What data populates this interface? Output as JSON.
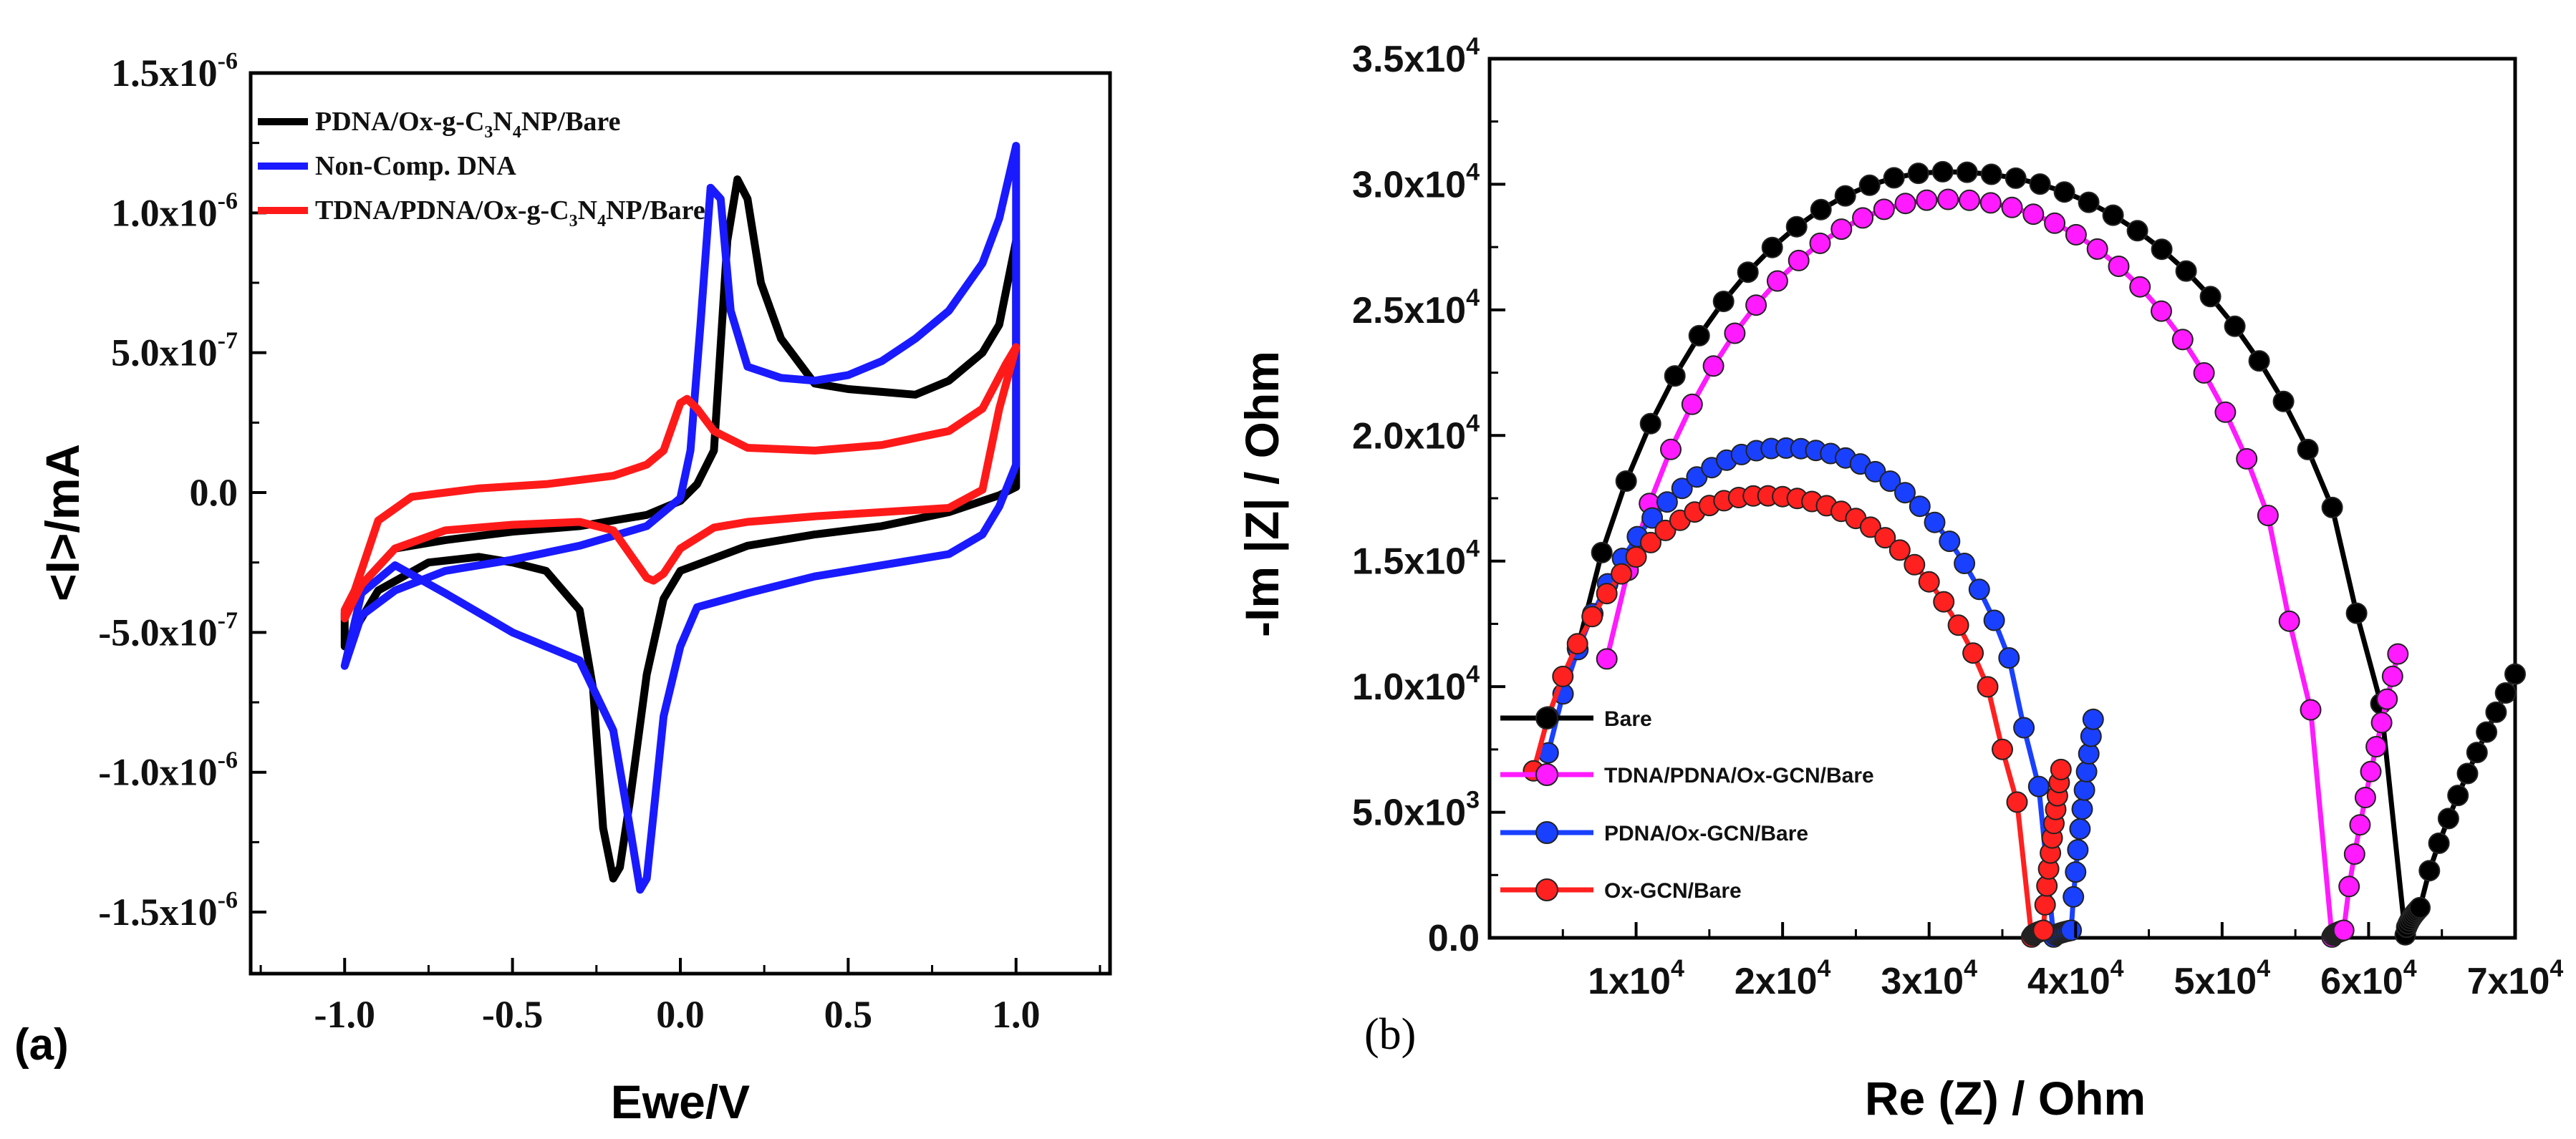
{
  "chart_data": [
    {
      "panel_label": "(a)",
      "type": "line",
      "xlabel": "Ewe/V",
      "ylabel": "<I>/mA",
      "xlim": [
        -1.28,
        1.28
      ],
      "ylim": [
        -1.72e-06,
        1.5e-06
      ],
      "x_ticks": [
        {
          "v": -1.0,
          "t": "-1.0"
        },
        {
          "v": -0.5,
          "t": "-0.5"
        },
        {
          "v": 0.0,
          "t": "0.0"
        },
        {
          "v": 0.5,
          "t": "0.5"
        },
        {
          "v": 1.0,
          "t": "1.0"
        }
      ],
      "y_ticks": [
        {
          "v": 1.5e-06,
          "m": "1.5x10",
          "e": "-6"
        },
        {
          "v": 1e-06,
          "m": "1.0x10",
          "e": "-6"
        },
        {
          "v": 5e-07,
          "m": "5.0x10",
          "e": "-7"
        },
        {
          "v": 0,
          "m": "0.0",
          "e": ""
        },
        {
          "v": -5e-07,
          "m": "-5.0x10",
          "e": "-7"
        },
        {
          "v": -1e-06,
          "m": "-1.0x10",
          "e": "-6"
        },
        {
          "v": -1.5e-06,
          "m": "-1.5x10",
          "e": "-6"
        }
      ],
      "legend_position": "top-left",
      "series": [
        {
          "name": "PDNA/Ox-g-C3N4NP/Bare",
          "name_parts": [
            "PDNA/Ox-g-C",
            "3",
            "N",
            "4",
            "NP/Bare"
          ],
          "color": "#000000",
          "x": [
            -1.0,
            -0.95,
            -0.85,
            -0.7,
            -0.5,
            -0.3,
            -0.1,
            0.0,
            0.05,
            0.1,
            0.14,
            0.17,
            0.2,
            0.24,
            0.3,
            0.4,
            0.5,
            0.6,
            0.7,
            0.8,
            0.9,
            0.95,
            1.0,
            1.0,
            0.95,
            0.9,
            0.8,
            0.6,
            0.4,
            0.2,
            0.0,
            -0.05,
            -0.1,
            -0.15,
            -0.18,
            -0.2,
            -0.23,
            -0.26,
            -0.3,
            -0.4,
            -0.5,
            -0.6,
            -0.75,
            -0.9,
            -1.0
          ],
          "y": [
            -4.3e-07,
            -3.3e-07,
            -2e-07,
            -1.7e-07,
            -1.4e-07,
            -1.2e-07,
            -8e-08,
            -3e-08,
            3e-08,
            1.5e-07,
            9e-07,
            1.12e-06,
            1.05e-06,
            7.5e-07,
            5.5e-07,
            3.9e-07,
            3.7e-07,
            3.6e-07,
            3.5e-07,
            4e-07,
            5e-07,
            6e-07,
            9e-07,
            2e-08,
            -1e-08,
            -3e-08,
            -7e-08,
            -1.2e-07,
            -1.5e-07,
            -1.9e-07,
            -2.8e-07,
            -3.8e-07,
            -6.5e-07,
            -1.1e-06,
            -1.34e-06,
            -1.38e-06,
            -1.2e-06,
            -7e-07,
            -4.2e-07,
            -2.8e-07,
            -2.5e-07,
            -2.3e-07,
            -2.5e-07,
            -3.5e-07,
            -5.5e-07
          ]
        },
        {
          "name": "Non-Comp. DNA",
          "color": "#1a1aff",
          "x": [
            -1.0,
            -0.95,
            -0.85,
            -0.7,
            -0.5,
            -0.3,
            -0.1,
            0.0,
            0.03,
            0.06,
            0.09,
            0.12,
            0.15,
            0.2,
            0.3,
            0.4,
            0.5,
            0.6,
            0.7,
            0.8,
            0.9,
            0.95,
            1.0,
            1.0,
            0.95,
            0.9,
            0.8,
            0.6,
            0.4,
            0.2,
            0.05,
            0.0,
            -0.05,
            -0.08,
            -0.1,
            -0.12,
            -0.15,
            -0.2,
            -0.3,
            -0.5,
            -0.7,
            -0.85,
            -0.95,
            -1.0
          ],
          "y": [
            -6.2e-07,
            -4.4e-07,
            -3.5e-07,
            -2.8e-07,
            -2.4e-07,
            -1.9e-07,
            -1.2e-07,
            -2e-08,
            1.5e-07,
            6e-07,
            1.09e-06,
            1.05e-06,
            6.5e-07,
            4.5e-07,
            4.1e-07,
            4e-07,
            4.2e-07,
            4.7e-07,
            5.5e-07,
            6.5e-07,
            8.2e-07,
            9.8e-07,
            1.24e-06,
            1e-07,
            -5e-08,
            -1.5e-07,
            -2.2e-07,
            -2.6e-07,
            -3e-07,
            -3.6e-07,
            -4.1e-07,
            -5.5e-07,
            -8e-07,
            -1.15e-06,
            -1.38e-06,
            -1.42e-06,
            -1.2e-06,
            -8.5e-07,
            -6e-07,
            -5e-07,
            -3.6e-07,
            -2.6e-07,
            -3.6e-07,
            -6.2e-07
          ]
        },
        {
          "name": "TDNA/PDNA/Ox-g-C3N4NP/Bare",
          "name_parts": [
            "TDNA/PDNA/Ox-g-C",
            "3",
            "N",
            "4",
            "NP/Bare"
          ],
          "color": "#ff1a1a",
          "x": [
            -1.0,
            -0.97,
            -0.9,
            -0.8,
            -0.6,
            -0.4,
            -0.2,
            -0.1,
            -0.05,
            0.0,
            0.02,
            0.05,
            0.1,
            0.2,
            0.4,
            0.6,
            0.8,
            0.9,
            0.97,
            1.0,
            0.95,
            0.9,
            0.8,
            0.6,
            0.4,
            0.2,
            0.1,
            0.0,
            -0.05,
            -0.08,
            -0.1,
            -0.15,
            -0.2,
            -0.3,
            -0.5,
            -0.7,
            -0.85,
            -0.95,
            -1.0
          ],
          "y": [
            -4.2e-07,
            -3.5e-07,
            -1e-07,
            -1.5e-08,
            1.5e-08,
            3e-08,
            6e-08,
            1e-07,
            1.5e-07,
            3.2e-07,
            3.35e-07,
            3e-07,
            2.2e-07,
            1.6e-07,
            1.5e-07,
            1.7e-07,
            2.2e-07,
            3e-07,
            4.6e-07,
            5.2e-07,
            3e-07,
            1e-08,
            -5.5e-08,
            -7e-08,
            -8.5e-08,
            -1.05e-07,
            -1.25e-07,
            -2e-07,
            -2.9e-07,
            -3.15e-07,
            -3.05e-07,
            -2.2e-07,
            -1.35e-07,
            -1.05e-07,
            -1.15e-07,
            -1.35e-07,
            -2e-07,
            -3.3e-07,
            -4.5e-07
          ]
        }
      ]
    },
    {
      "panel_label": "(b)",
      "type": "line",
      "xlabel": "Re (Z) / Ohm",
      "ylabel": "-Im |Z| / Ohm",
      "xlim": [
        0,
        70000
      ],
      "ylim": [
        0,
        35000
      ],
      "x_ticks": [
        {
          "v": 10000,
          "m": "1x10",
          "e": "4"
        },
        {
          "v": 20000,
          "m": "2x10",
          "e": "4"
        },
        {
          "v": 30000,
          "m": "3x10",
          "e": "4"
        },
        {
          "v": 40000,
          "m": "4x10",
          "e": "4"
        },
        {
          "v": 50000,
          "m": "5x10",
          "e": "4"
        },
        {
          "v": 60000,
          "m": "6x10",
          "e": "4"
        },
        {
          "v": 70000,
          "m": "7x10",
          "e": "4"
        }
      ],
      "y_ticks": [
        {
          "v": 0,
          "m": "0.0",
          "e": ""
        },
        {
          "v": 5000,
          "m": "5.0x10",
          "e": "3"
        },
        {
          "v": 10000,
          "m": "1.0x10",
          "e": "4"
        },
        {
          "v": 15000,
          "m": "1.5x10",
          "e": "4"
        },
        {
          "v": 20000,
          "m": "2.0x10",
          "e": "4"
        },
        {
          "v": 25000,
          "m": "2.5x10",
          "e": "4"
        },
        {
          "v": 30000,
          "m": "3.0x10",
          "e": "4"
        },
        {
          "v": 35000,
          "m": "3.5x10",
          "e": "4"
        }
      ],
      "legend_position": "bottom-left",
      "series": [
        {
          "name": "Bare",
          "color": "#000000",
          "arc": {
            "start": 6000,
            "end": 62500,
            "center": 31000,
            "peak": 30500
          },
          "tail": {
            "min_x": 63500,
            "min_y": 1200,
            "end_x": 70000,
            "end_y": 10500
          }
        },
        {
          "name": "TDNA/PDNA/Ox-GCN/Bare",
          "color": "#ff1aff",
          "arc": {
            "start": 8000,
            "end": 57500,
            "center": 31000,
            "peak": 29400
          },
          "tail": {
            "min_x": 58300,
            "min_y": 300,
            "end_x": 62000,
            "end_y": 11300
          }
        },
        {
          "name": "PDNA/Ox-GCN/Bare",
          "color": "#1a40ff",
          "arc": {
            "start": 4000,
            "end": 38500,
            "center": 20000,
            "peak": 19500
          },
          "tail": {
            "min_x": 39700,
            "min_y": 300,
            "end_x": 41200,
            "end_y": 8700
          }
        },
        {
          "name": "Ox-GCN/Bare",
          "color": "#ff2020",
          "arc": {
            "start": 3000,
            "end": 37000,
            "center": 18500,
            "peak": 17600
          },
          "tail": {
            "min_x": 37800,
            "min_y": 300,
            "end_x": 39000,
            "end_y": 6700
          }
        }
      ]
    }
  ]
}
